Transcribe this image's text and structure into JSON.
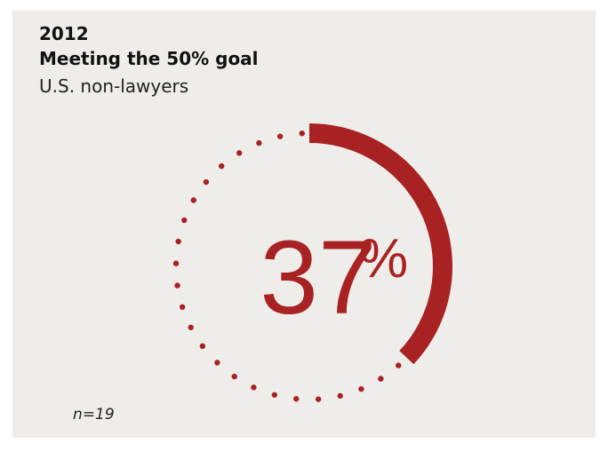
{
  "colors": {
    "panel": "#eeede9",
    "accent": "#a82224",
    "text": "#111111"
  },
  "header": {
    "year": "2012",
    "title": "Meeting the 50% goal",
    "subtitle": "U.S. non-lawyers"
  },
  "chart_data": {
    "type": "pie",
    "value_percent": 37,
    "value_label": "37",
    "unit_label": "%",
    "remainder_style": "dotted",
    "note": "n=19"
  }
}
